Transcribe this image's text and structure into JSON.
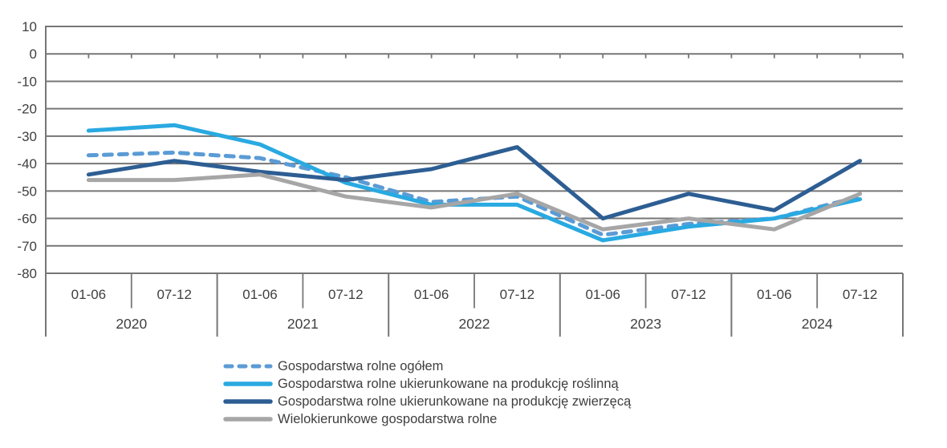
{
  "chart_data": {
    "type": "line",
    "title": "",
    "xlabel": "",
    "ylabel": "",
    "ylim": [
      -80,
      10
    ],
    "y_tick_step": 10,
    "y_ticks": [
      "10",
      "0",
      "-10",
      "-20",
      "-30",
      "-40",
      "-50",
      "-60",
      "-70",
      "-80"
    ],
    "grid": true,
    "legend_position": "bottom",
    "x_groups": [
      {
        "year": "2020",
        "periods": [
          "01-06",
          "07-12"
        ]
      },
      {
        "year": "2021",
        "periods": [
          "01-06",
          "07-12"
        ]
      },
      {
        "year": "2022",
        "periods": [
          "01-06",
          "07-12"
        ]
      },
      {
        "year": "2023",
        "periods": [
          "01-06",
          "07-12"
        ]
      },
      {
        "year": "2024",
        "periods": [
          "01-06",
          "07-12"
        ]
      }
    ],
    "series": [
      {
        "name": "Gospodarstwa rolne ogółem",
        "style": "dashed",
        "color": "#5B9BD5",
        "values": [
          -37,
          -36,
          -38,
          -45,
          -54,
          -52,
          -66,
          -62,
          -60,
          -52
        ]
      },
      {
        "name": "Gospodarstwa rolne ukierunkowane na produkcję roślinną",
        "style": "solid",
        "color": "#29A9E1",
        "values": [
          -28,
          -26,
          -33,
          -47,
          -55,
          -55,
          -68,
          -63,
          -60,
          -53
        ]
      },
      {
        "name": "Gospodarstwa rolne ukierunkowane na produkcję zwierzęcą",
        "style": "solid",
        "color": "#2D5E93",
        "values": [
          -44,
          -39,
          -43,
          -46,
          -42,
          -34,
          -60,
          -51,
          -57,
          -39
        ]
      },
      {
        "name": "Wielokierunkowe gospodarstwa rolne",
        "style": "solid",
        "color": "#A6A6A6",
        "values": [
          -46,
          -46,
          -44,
          -52,
          -56,
          -51,
          -64,
          -60,
          -64,
          -51
        ]
      }
    ],
    "axis_text_color": "#3f3f3f",
    "grid_color": "#767676"
  }
}
